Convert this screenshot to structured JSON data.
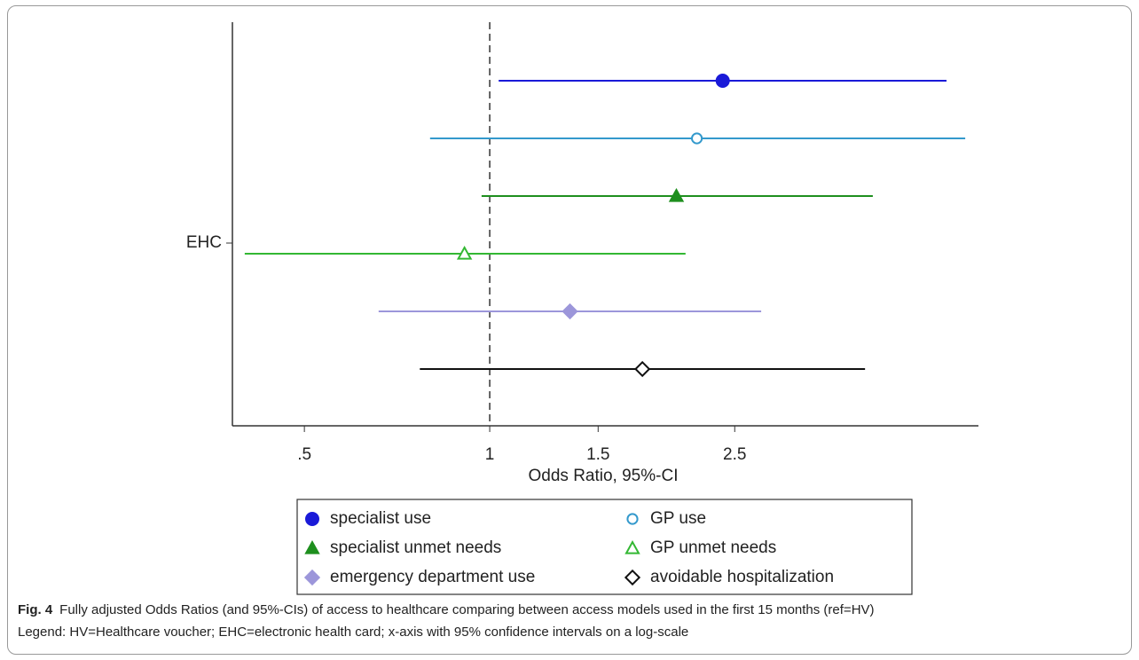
{
  "chart_data": {
    "type": "forest",
    "xlabel": "Odds Ratio, 95%-CI",
    "categories": [
      "EHC"
    ],
    "xscale": "log",
    "xlim": [
      0.382,
      6.22
    ],
    "xticks": [
      {
        "value": 0.5,
        "label": ".5"
      },
      1,
      1.5,
      2.5
    ],
    "ref_line": 1,
    "series": [
      {
        "name": "specialist use",
        "color": "#1a1ad8",
        "marker": "circle",
        "filled": true,
        "value": 2.39,
        "ci": [
          1.034,
          5.52
        ]
      },
      {
        "name": "GP use",
        "color": "#3399cc",
        "marker": "circle",
        "filled": false,
        "value": 2.17,
        "ci": [
          0.8,
          5.92
        ]
      },
      {
        "name": "specialist unmet needs",
        "color": "#1e8f1e",
        "marker": "triangle",
        "filled": true,
        "value": 2.01,
        "ci": [
          0.97,
          4.19
        ]
      },
      {
        "name": "GP unmet needs",
        "color": "#33b833",
        "marker": "triangle",
        "filled": false,
        "value": 0.91,
        "ci": [
          0.4,
          2.08
        ]
      },
      {
        "name": "emergency department use",
        "color": "#9c96da",
        "marker": "diamond",
        "filled": true,
        "value": 1.35,
        "ci": [
          0.66,
          2.76
        ]
      },
      {
        "name": "avoidable hospitalization",
        "color": "#111111",
        "marker": "diamond",
        "filled": false,
        "value": 1.77,
        "ci": [
          0.77,
          4.07
        ]
      }
    ]
  },
  "caption": {
    "label": "Fig. 4",
    "text": "Fully adjusted Odds Ratios (and 95%-CIs) of access to healthcare comparing between access models used in the first 15 months (ref=HV)",
    "note": "Legend: HV=Healthcare voucher; EHC=electronic health card; x-axis with 95% confidence intervals on a log-scale"
  }
}
